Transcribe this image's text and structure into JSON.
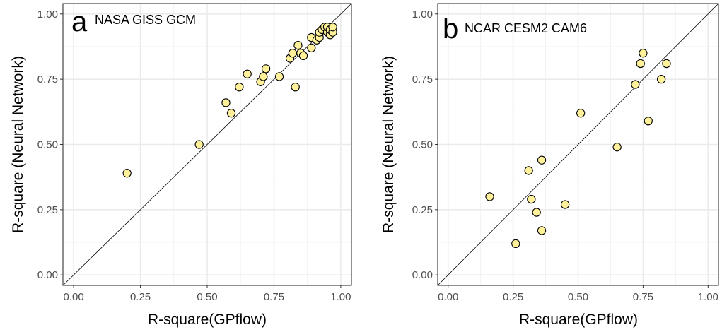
{
  "panels": [
    {
      "letter": "a",
      "title": "NASA GISS GCM",
      "xlabel": "R-square(GPflow)",
      "ylabel": "R-square (Neural Network)"
    },
    {
      "letter": "b",
      "title": "NCAR CESM2 CAM6",
      "xlabel": "R-square(GPflow)",
      "ylabel": "R-square (Neural Network)"
    }
  ],
  "chart_data": [
    {
      "type": "scatter",
      "xlim": [
        -0.04,
        1.04
      ],
      "ylim": [
        -0.04,
        1.04
      ],
      "xticks": [
        "0.00",
        "0.25",
        "0.50",
        "0.75",
        "1.00"
      ],
      "yticks": [
        "0.00",
        "0.25",
        "0.50",
        "0.75",
        "1.00"
      ],
      "reference_line": "y = x",
      "grid": true,
      "point_color": "#fff19a",
      "point_edge": "#000000",
      "points": [
        [
          0.2,
          0.39
        ],
        [
          0.47,
          0.5
        ],
        [
          0.57,
          0.66
        ],
        [
          0.59,
          0.62
        ],
        [
          0.62,
          0.72
        ],
        [
          0.65,
          0.77
        ],
        [
          0.7,
          0.74
        ],
        [
          0.71,
          0.76
        ],
        [
          0.72,
          0.79
        ],
        [
          0.77,
          0.76
        ],
        [
          0.81,
          0.83
        ],
        [
          0.82,
          0.85
        ],
        [
          0.83,
          0.72
        ],
        [
          0.84,
          0.88
        ],
        [
          0.85,
          0.85
        ],
        [
          0.86,
          0.84
        ],
        [
          0.89,
          0.87
        ],
        [
          0.89,
          0.91
        ],
        [
          0.91,
          0.9
        ],
        [
          0.92,
          0.91
        ],
        [
          0.92,
          0.93
        ],
        [
          0.93,
          0.94
        ],
        [
          0.94,
          0.95
        ],
        [
          0.95,
          0.93
        ],
        [
          0.95,
          0.95
        ],
        [
          0.96,
          0.92
        ],
        [
          0.96,
          0.94
        ],
        [
          0.97,
          0.93
        ],
        [
          0.97,
          0.95
        ]
      ]
    },
    {
      "type": "scatter",
      "xlim": [
        -0.04,
        1.04
      ],
      "ylim": [
        -0.04,
        1.04
      ],
      "xticks": [
        "0.00",
        "0.25",
        "0.50",
        "0.75",
        "1.00"
      ],
      "yticks": [
        "0.00",
        "0.25",
        "0.50",
        "0.75",
        "1.00"
      ],
      "reference_line": "y = x",
      "grid": true,
      "point_color": "#fff19a",
      "point_edge": "#000000",
      "points": [
        [
          0.16,
          0.3
        ],
        [
          0.26,
          0.12
        ],
        [
          0.31,
          0.4
        ],
        [
          0.32,
          0.29
        ],
        [
          0.34,
          0.24
        ],
        [
          0.36,
          0.17
        ],
        [
          0.36,
          0.44
        ],
        [
          0.45,
          0.27
        ],
        [
          0.51,
          0.62
        ],
        [
          0.65,
          0.49
        ],
        [
          0.72,
          0.73
        ],
        [
          0.74,
          0.81
        ],
        [
          0.75,
          0.85
        ],
        [
          0.77,
          0.59
        ],
        [
          0.82,
          0.75
        ],
        [
          0.84,
          0.81
        ]
      ]
    }
  ]
}
